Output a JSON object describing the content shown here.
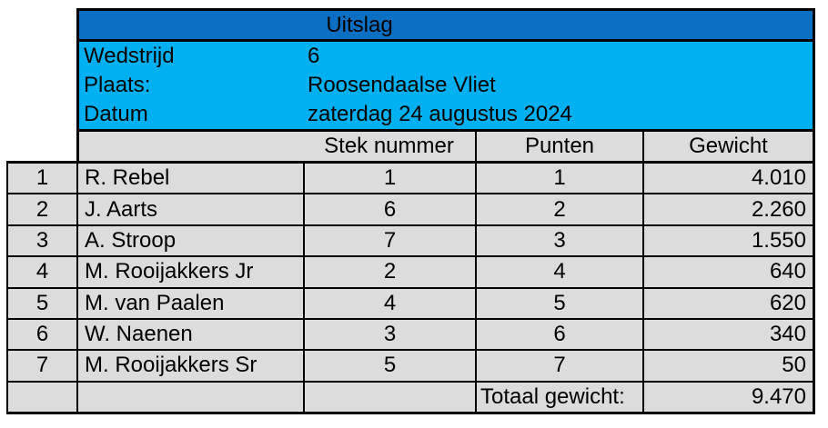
{
  "title": "Uitslag",
  "info": {
    "rows": [
      {
        "label": "Wedstrijd",
        "value": "6"
      },
      {
        "label": "Plaats:",
        "value": "Roosendaalse Vliet"
      },
      {
        "label": "Datum",
        "value": "zaterdag 24 augustus 2024"
      }
    ]
  },
  "columns": {
    "stek": "Stek nummer",
    "punten": "Punten",
    "gewicht": "Gewicht"
  },
  "results": [
    {
      "rank": "1",
      "name": "R. Rebel",
      "stek": "1",
      "punten": "1",
      "gewicht": "4.010"
    },
    {
      "rank": "2",
      "name": "J. Aarts",
      "stek": "6",
      "punten": "2",
      "gewicht": "2.260"
    },
    {
      "rank": "3",
      "name": "A. Stroop",
      "stek": "7",
      "punten": "3",
      "gewicht": "1.550"
    },
    {
      "rank": "4",
      "name": "M. Rooijakkers Jr",
      "stek": "2",
      "punten": "4",
      "gewicht": "640"
    },
    {
      "rank": "5",
      "name": "M. van Paalen",
      "stek": "4",
      "punten": "5",
      "gewicht": "620"
    },
    {
      "rank": "6",
      "name": "W. Naenen",
      "stek": "3",
      "punten": "6",
      "gewicht": "340"
    },
    {
      "rank": "7",
      "name": "M. Rooijakkers Sr",
      "stek": "5",
      "punten": "7",
      "gewicht": "50"
    }
  ],
  "total": {
    "label": "Totaal gewicht:",
    "value": "9.470"
  },
  "colors": {
    "header-blue": "#0B70C3",
    "info-blue": "#00B0F0",
    "cell-gray": "#DCDCDC",
    "line": "#000000"
  }
}
